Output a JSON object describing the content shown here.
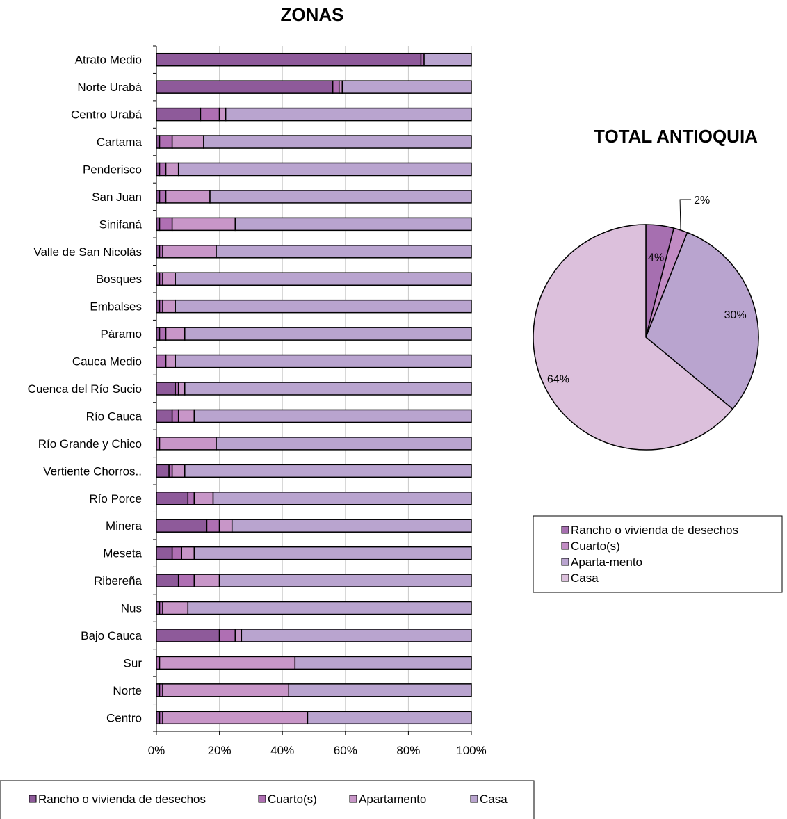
{
  "chart_data": [
    {
      "type": "bar",
      "orientation": "horizontal",
      "stacked": "percent",
      "title": "ZONAS",
      "categories": [
        "Atrato Medio",
        "Norte Urabá",
        "Centro Urabá",
        "Cartama",
        "Penderisco",
        "San Juan",
        "Sinifaná",
        "Valle de San Nicolás",
        "Bosques",
        "Embalses",
        "Páramo",
        "Cauca Medio",
        "Cuenca del Río Sucio",
        "Río Cauca",
        "Río Grande y Chico",
        "Vertiente Chorros..",
        "Río Porce",
        "Minera",
        "Meseta",
        "Ribereña",
        "Nus",
        "Bajo Cauca",
        "Sur",
        "Norte",
        "Centro"
      ],
      "series": [
        {
          "name": "Rancho o vivienda de desechos",
          "color": "#8E5A9A",
          "values": [
            84,
            56,
            14,
            1,
            1,
            1,
            1,
            1,
            1,
            1,
            1,
            0,
            6,
            5,
            0,
            4,
            10,
            16,
            5,
            7,
            1,
            20,
            0,
            1,
            1
          ]
        },
        {
          "name": "Cuarto(s)",
          "color": "#AF6FB3",
          "values": [
            1,
            2,
            6,
            4,
            2,
            2,
            4,
            1,
            1,
            1,
            2,
            3,
            1,
            2,
            1,
            1,
            2,
            4,
            3,
            5,
            1,
            5,
            1,
            1,
            1
          ]
        },
        {
          "name": "Apartamento",
          "color": "#C896C8",
          "values": [
            0,
            1,
            2,
            10,
            4,
            14,
            20,
            17,
            4,
            4,
            6,
            3,
            2,
            5,
            18,
            4,
            6,
            4,
            4,
            8,
            8,
            2,
            43,
            40,
            46
          ]
        },
        {
          "name": "Casa",
          "color": "#B9A4CF",
          "values": [
            15,
            41,
            78,
            85,
            93,
            83,
            75,
            81,
            94,
            94,
            91,
            94,
            91,
            88,
            81,
            91,
            82,
            76,
            88,
            80,
            90,
            73,
            56,
            58,
            52
          ]
        }
      ],
      "x_ticks": [
        "0%",
        "20%",
        "40%",
        "60%",
        "80%",
        "100%"
      ],
      "xlim": [
        0,
        100
      ],
      "grid": "vertical",
      "legend": {
        "position": "bottom",
        "entries": [
          "Rancho o vivienda de desechos",
          "Cuarto(s)",
          "Apartamento",
          "Casa"
        ]
      }
    },
    {
      "type": "pie",
      "title": "TOTAL ANTIOQUIA",
      "labels": [
        "Rancho o vivienda de desechos",
        "Cuarto(s)",
        "Aparta-mento",
        "Casa"
      ],
      "values": [
        4,
        2,
        30,
        64
      ],
      "value_labels": [
        "4%",
        "2%",
        "30%",
        "64%"
      ],
      "colors": [
        "#A66FB0",
        "#C28CC4",
        "#B9A4CF",
        "#DCC0DC"
      ],
      "legend": {
        "position": "right-middle",
        "entries": [
          "Rancho o vivienda de desechos",
          "Cuarto(s)",
          "Aparta-mento",
          "Casa"
        ]
      }
    }
  ]
}
